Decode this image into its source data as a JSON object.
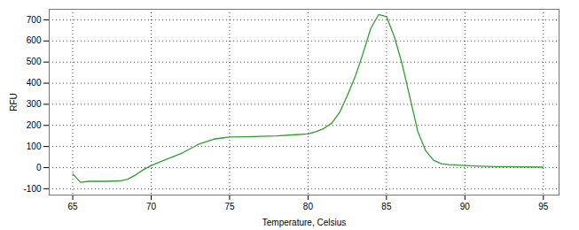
{
  "chart_data": {
    "type": "line",
    "x_label": "Temperature, Celsius",
    "y_label": "RFU",
    "x": [
      65,
      65.5,
      66,
      67,
      68,
      68.5,
      69,
      69.5,
      70,
      71,
      72,
      73,
      74,
      75,
      76,
      77,
      78,
      79,
      80,
      80.5,
      81,
      81.5,
      82,
      82.5,
      83,
      83.5,
      84,
      84.5,
      85,
      85.5,
      86,
      86.5,
      87,
      87.5,
      88,
      88.5,
      89,
      90,
      91,
      92,
      93,
      94,
      95
    ],
    "values": [
      -30,
      -70,
      -65,
      -65,
      -63,
      -55,
      -35,
      -10,
      10,
      40,
      70,
      110,
      135,
      145,
      146,
      148,
      150,
      155,
      160,
      170,
      185,
      210,
      260,
      340,
      430,
      540,
      660,
      725,
      715,
      620,
      490,
      330,
      170,
      80,
      35,
      18,
      14,
      10,
      7,
      5,
      4,
      3,
      2
    ],
    "color": "#2e9e2e",
    "xlim": [
      63.5,
      96
    ],
    "xticks": [
      65,
      70,
      75,
      80,
      85,
      90,
      95
    ],
    "ylim": [
      -130,
      750
    ],
    "yticks": [
      -100,
      0,
      100,
      200,
      300,
      400,
      500,
      600,
      700
    ],
    "grid": true
  }
}
